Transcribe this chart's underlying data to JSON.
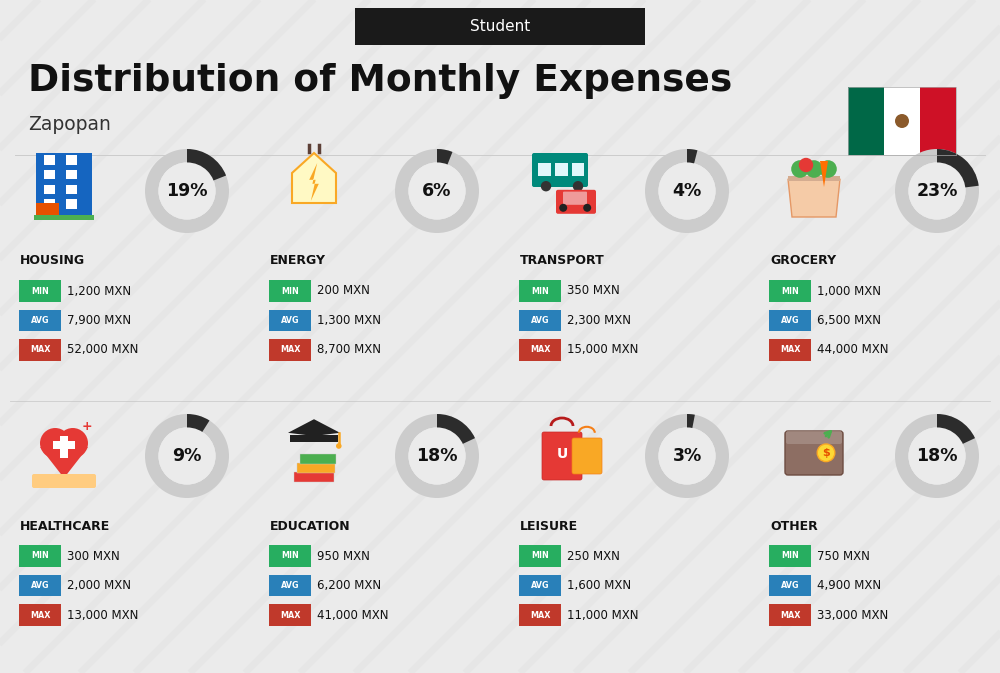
{
  "title": "Distribution of Monthly Expenses",
  "subtitle": "Student",
  "location": "Zapopan",
  "bg_color": "#ebebeb",
  "categories": [
    {
      "name": "HOUSING",
      "pct": 19,
      "min": "1,200 MXN",
      "avg": "7,900 MXN",
      "max": "52,000 MXN",
      "row": 0,
      "col": 0,
      "icon_type": "housing"
    },
    {
      "name": "ENERGY",
      "pct": 6,
      "min": "200 MXN",
      "avg": "1,300 MXN",
      "max": "8,700 MXN",
      "row": 0,
      "col": 1,
      "icon_type": "energy"
    },
    {
      "name": "TRANSPORT",
      "pct": 4,
      "min": "350 MXN",
      "avg": "2,300 MXN",
      "max": "15,000 MXN",
      "row": 0,
      "col": 2,
      "icon_type": "transport"
    },
    {
      "name": "GROCERY",
      "pct": 23,
      "min": "1,000 MXN",
      "avg": "6,500 MXN",
      "max": "44,000 MXN",
      "row": 0,
      "col": 3,
      "icon_type": "grocery"
    },
    {
      "name": "HEALTHCARE",
      "pct": 9,
      "min": "300 MXN",
      "avg": "2,000 MXN",
      "max": "13,000 MXN",
      "row": 1,
      "col": 0,
      "icon_type": "healthcare"
    },
    {
      "name": "EDUCATION",
      "pct": 18,
      "min": "950 MXN",
      "avg": "6,200 MXN",
      "max": "41,000 MXN",
      "row": 1,
      "col": 1,
      "icon_type": "education"
    },
    {
      "name": "LEISURE",
      "pct": 3,
      "min": "250 MXN",
      "avg": "1,600 MXN",
      "max": "11,000 MXN",
      "row": 1,
      "col": 2,
      "icon_type": "leisure"
    },
    {
      "name": "OTHER",
      "pct": 18,
      "min": "750 MXN",
      "avg": "4,900 MXN",
      "max": "33,000 MXN",
      "row": 1,
      "col": 3,
      "icon_type": "other"
    }
  ],
  "color_min": "#27ae60",
  "color_avg": "#2980b9",
  "color_max": "#c0392b",
  "donut_dark": "#2c2c2c",
  "donut_light": "#cccccc",
  "stripe_color": "#dedede",
  "flag_green": "#006847",
  "flag_white": "#ffffff",
  "flag_red": "#ce1126",
  "header_bg": "#1a1a1a",
  "header_text": "#ffffff",
  "title_color": "#111111",
  "name_color": "#111111",
  "value_color": "#111111"
}
